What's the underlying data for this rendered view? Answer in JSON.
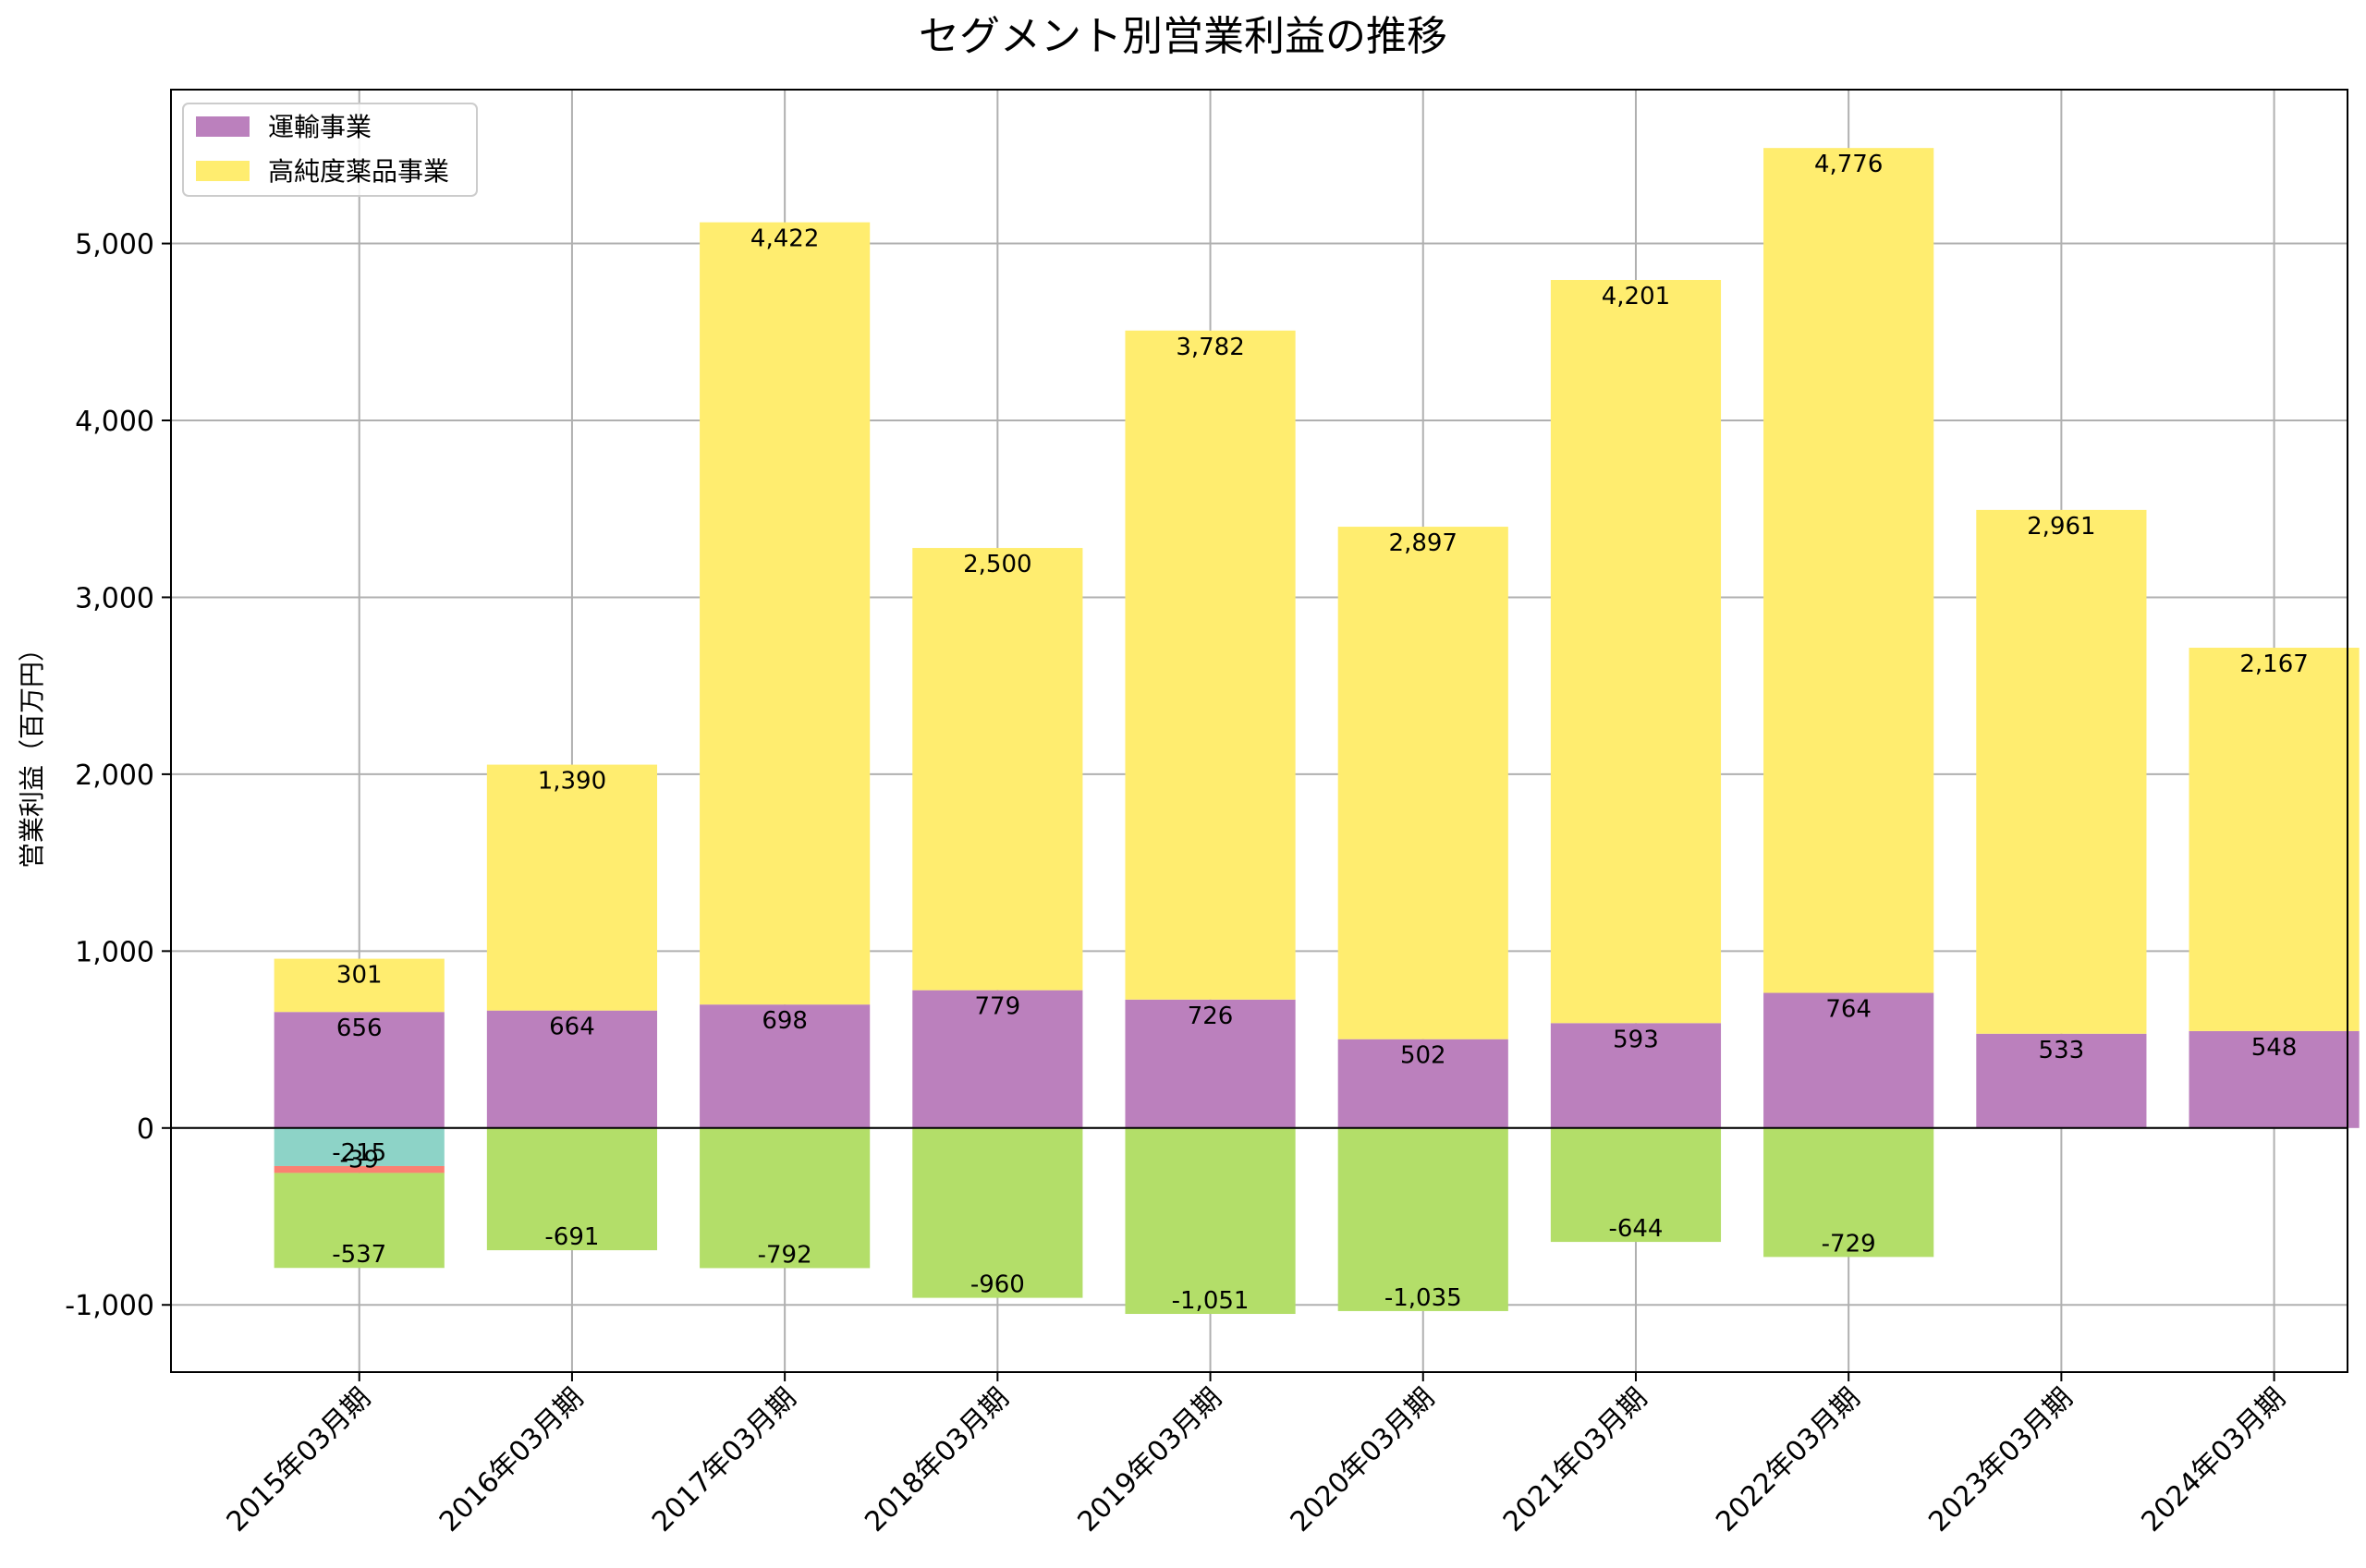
{
  "chart_data": {
    "type": "bar",
    "stacked": true,
    "title": "セグメント別営業利益の推移",
    "xlabel": "",
    "ylabel": "営業利益（百万円）",
    "ylim": [
      -1380,
      5870
    ],
    "yticks": [
      -1000,
      0,
      1000,
      2000,
      3000,
      4000,
      5000
    ],
    "ytick_labels": [
      "-1,000",
      "0",
      "1,000",
      "2,000",
      "3,000",
      "4,000",
      "5,000"
    ],
    "grid": true,
    "legend_position": "top-left",
    "categories": [
      "2015年03月期",
      "2016年03月期",
      "2017年03月期",
      "2018年03月期",
      "2019年03月期",
      "2020年03月期",
      "2021年03月期",
      "2022年03月期",
      "2023年03月期",
      "2024年03月期"
    ],
    "series": [
      {
        "name": "運輸事業",
        "color": "#bb80bd",
        "in_legend": true,
        "values": [
          656,
          664,
          698,
          779,
          726,
          502,
          593,
          764,
          533,
          548
        ],
        "labels": [
          "656",
          "664",
          "698",
          "779",
          "726",
          "502",
          "593",
          "764",
          "533",
          "548"
        ]
      },
      {
        "name": "高純度薬品事業",
        "color": "#ffed6f",
        "in_legend": true,
        "values": [
          301,
          1390,
          4422,
          2500,
          3782,
          2897,
          4201,
          4776,
          2961,
          2167
        ],
        "labels": [
          "301",
          "1,390",
          "4,422",
          "2,500",
          "3,782",
          "2,897",
          "4,201",
          "4,776",
          "2,961",
          "2,167"
        ]
      },
      {
        "name": "",
        "color": "#8dd3c7",
        "in_legend": false,
        "values": [
          -215,
          null,
          null,
          null,
          null,
          null,
          null,
          null,
          null,
          null
        ],
        "labels": [
          "-215",
          "",
          "",
          "",
          "",
          "",
          "",
          "",
          "",
          ""
        ]
      },
      {
        "name": "",
        "color": "#fb8072",
        "in_legend": false,
        "values": [
          -39,
          null,
          null,
          null,
          null,
          null,
          null,
          null,
          null,
          null
        ],
        "labels": [
          "-39",
          "",
          "",
          "",
          "",
          "",
          "",
          "",
          "",
          ""
        ]
      },
      {
        "name": "",
        "color": "#b3de69",
        "in_legend": false,
        "values": [
          -537,
          -691,
          -792,
          -960,
          -1051,
          -1035,
          -644,
          -729,
          null,
          null
        ],
        "labels": [
          "-537",
          "-691",
          "-792",
          "-960",
          "-1,051",
          "-1,035",
          "-644",
          "-729",
          "",
          ""
        ]
      }
    ]
  }
}
